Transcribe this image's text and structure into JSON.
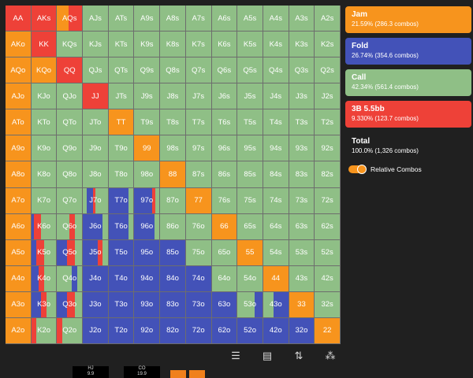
{
  "colors": {
    "jam": "#f7941d",
    "fold": "#4352b8",
    "call": "#8fbf86",
    "threebet": "#ee4138"
  },
  "legend": [
    {
      "key": "jam",
      "name": "Jam",
      "stats": "21.59% (286.3 combos)"
    },
    {
      "key": "fold",
      "name": "Fold",
      "stats": "26.74% (354.6 combos)"
    },
    {
      "key": "call",
      "name": "Call",
      "stats": "42.34% (561.4 combos)"
    },
    {
      "key": "threebet",
      "name": "3B 5.5bb",
      "stats": "9.330% (123.7 combos)"
    }
  ],
  "total": {
    "name": "Total",
    "stats": "100.0% (1,326 combos)"
  },
  "toggle": {
    "label": "Relative Combos",
    "on": true
  },
  "grid": {
    "ranks": [
      "A",
      "K",
      "Q",
      "J",
      "T",
      "9",
      "8",
      "7",
      "6",
      "5",
      "4",
      "3",
      "2"
    ],
    "mix": {
      "AA": [
        [
          "threebet",
          1
        ]
      ],
      "AKs": [
        [
          "threebet",
          1
        ]
      ],
      "AQs": [
        [
          "jam",
          0.45
        ],
        [
          "threebet",
          0.55
        ]
      ],
      "AKo": [
        [
          "jam",
          1
        ]
      ],
      "KK": [
        [
          "threebet",
          1
        ]
      ],
      "AQo": [
        [
          "jam",
          1
        ]
      ],
      "KQo": [
        [
          "jam",
          1
        ]
      ],
      "QQ": [
        [
          "threebet",
          1
        ]
      ],
      "AJo": [
        [
          "jam",
          1
        ]
      ],
      "JJ": [
        [
          "threebet",
          1
        ]
      ],
      "ATo": [
        [
          "jam",
          1
        ]
      ],
      "TT": [
        [
          "jam",
          1
        ]
      ],
      "A9o": [
        [
          "jam",
          1
        ]
      ],
      "99": [
        [
          "jam",
          1
        ]
      ],
      "A8o": [
        [
          "jam",
          1
        ]
      ],
      "88": [
        [
          "jam",
          1
        ]
      ],
      "A7o": [
        [
          "jam",
          1
        ]
      ],
      "77": [
        [
          "jam",
          1
        ]
      ],
      "A6o": [
        [
          "jam",
          1
        ]
      ],
      "66": [
        [
          "jam",
          1
        ]
      ],
      "A5o": [
        [
          "jam",
          1
        ]
      ],
      "55": [
        [
          "jam",
          1
        ]
      ],
      "A4o": [
        [
          "jam",
          1
        ]
      ],
      "44": [
        [
          "jam",
          1
        ]
      ],
      "A3o": [
        [
          "jam",
          1
        ]
      ],
      "33": [
        [
          "jam",
          1
        ]
      ],
      "A2o": [
        [
          "jam",
          1
        ]
      ],
      "22": [
        [
          "jam",
          1
        ]
      ],
      "J7o": [
        [
          "call",
          0.15
        ],
        [
          "fold",
          0.25
        ],
        [
          "threebet",
          0.1
        ],
        [
          "call",
          0.5
        ]
      ],
      "T7o": [
        [
          "fold",
          0.8
        ],
        [
          "call",
          0.2
        ]
      ],
      "97o": [
        [
          "fold",
          0.7
        ],
        [
          "threebet",
          0.15
        ],
        [
          "call",
          0.15
        ]
      ],
      "K6o": [
        [
          "fold",
          0.1
        ],
        [
          "threebet",
          0.3
        ],
        [
          "call",
          0.6
        ]
      ],
      "Q6o": [
        [
          "call",
          0.5
        ],
        [
          "threebet",
          0.2
        ],
        [
          "call",
          0.3
        ]
      ],
      "J6o": [
        [
          "fold",
          0.8
        ],
        [
          "call",
          0.2
        ]
      ],
      "T6o": [
        [
          "fold",
          0.8
        ],
        [
          "call",
          0.2
        ]
      ],
      "96o": [
        [
          "fold",
          0.8
        ],
        [
          "call",
          0.2
        ]
      ],
      "K5o": [
        [
          "fold",
          0.2
        ],
        [
          "threebet",
          0.3
        ],
        [
          "call",
          0.5
        ]
      ],
      "Q5o": [
        [
          "fold",
          0.4
        ],
        [
          "threebet",
          0.3
        ],
        [
          "call",
          0.3
        ]
      ],
      "J5o": [
        [
          "fold",
          0.6
        ],
        [
          "threebet",
          0.2
        ],
        [
          "call",
          0.2
        ]
      ],
      "T5o": [
        [
          "fold",
          1
        ]
      ],
      "95o": [
        [
          "fold",
          1
        ]
      ],
      "85o": [
        [
          "fold",
          1
        ]
      ],
      "K4o": [
        [
          "fold",
          0.3
        ],
        [
          "threebet",
          0.2
        ],
        [
          "call",
          0.5
        ]
      ],
      "Q4o": [
        [
          "call",
          0.6
        ],
        [
          "fold",
          0.2
        ],
        [
          "call",
          0.2
        ]
      ],
      "J4o": [
        [
          "fold",
          1
        ]
      ],
      "T4o": [
        [
          "fold",
          1
        ]
      ],
      "94o": [
        [
          "fold",
          1
        ]
      ],
      "84o": [
        [
          "fold",
          1
        ]
      ],
      "74o": [
        [
          "fold",
          1
        ]
      ],
      "K3o": [
        [
          "fold",
          0.4
        ],
        [
          "threebet",
          0.2
        ],
        [
          "call",
          0.4
        ]
      ],
      "Q3o": [
        [
          "fold",
          0.4
        ],
        [
          "threebet",
          0.3
        ],
        [
          "call",
          0.3
        ]
      ],
      "J3o": [
        [
          "fold",
          1
        ]
      ],
      "T3o": [
        [
          "fold",
          1
        ]
      ],
      "93o": [
        [
          "fold",
          1
        ]
      ],
      "83o": [
        [
          "fold",
          1
        ]
      ],
      "73o": [
        [
          "fold",
          1
        ]
      ],
      "63o": [
        [
          "fold",
          1
        ]
      ],
      "53o": [
        [
          "call",
          0.7
        ],
        [
          "fold",
          0.3
        ]
      ],
      "43o": [
        [
          "call",
          0.4
        ],
        [
          "fold",
          0.6
        ]
      ],
      "K2o": [
        [
          "threebet",
          0.2
        ],
        [
          "call",
          0.8
        ]
      ],
      "Q2o": [
        [
          "threebet",
          0.2
        ],
        [
          "call",
          0.8
        ]
      ],
      "J2o": [
        [
          "fold",
          1
        ]
      ],
      "T2o": [
        [
          "fold",
          1
        ]
      ],
      "92o": [
        [
          "fold",
          1
        ]
      ],
      "82o": [
        [
          "fold",
          1
        ]
      ],
      "72o": [
        [
          "fold",
          1
        ]
      ],
      "62o": [
        [
          "fold",
          1
        ]
      ],
      "52o": [
        [
          "fold",
          1
        ]
      ],
      "42o": [
        [
          "fold",
          1
        ]
      ],
      "32o": [
        [
          "fold",
          1
        ]
      ]
    },
    "default_action": "call"
  },
  "toolbar": [
    {
      "icon": "list-icon",
      "glyph": "☰"
    },
    {
      "icon": "table-icon",
      "glyph": "▤"
    },
    {
      "icon": "sort-icon",
      "glyph": "⇅"
    },
    {
      "icon": "share-icon",
      "glyph": "⁂"
    }
  ],
  "seats": [
    {
      "name": "HJ",
      "stack": "9.9"
    },
    {
      "name": "CO",
      "stack": "19.9"
    }
  ]
}
